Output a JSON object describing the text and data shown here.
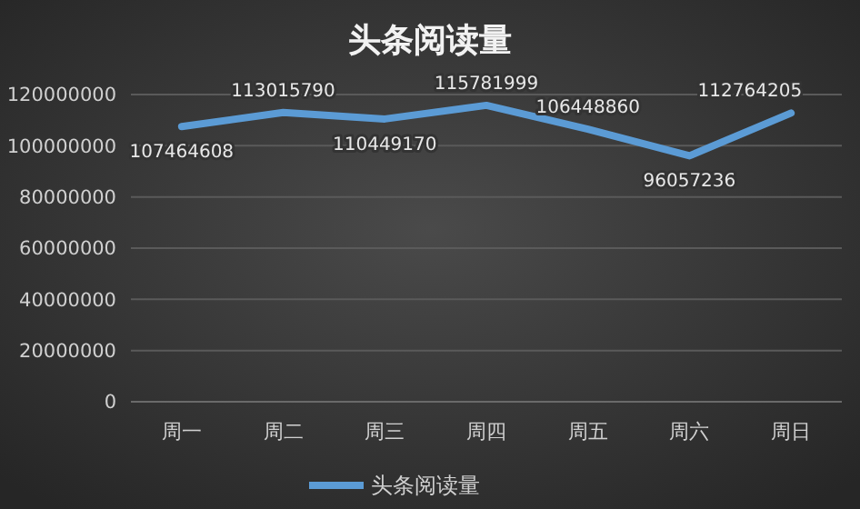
{
  "chart_data": {
    "type": "line",
    "title": "头条阅读量",
    "categories": [
      "周一",
      "周二",
      "周三",
      "周四",
      "周五",
      "周六",
      "周日"
    ],
    "series": [
      {
        "name": "头条阅读量",
        "color": "#5b9bd5",
        "values": [
          107464608,
          113015790,
          110449170,
          115781999,
          106448860,
          96057236,
          112764205
        ]
      }
    ],
    "ylim": [
      0,
      120000000
    ],
    "yticks": [
      0,
      20000000,
      40000000,
      60000000,
      80000000,
      100000000,
      120000000
    ],
    "grid": "y",
    "legend": "bottom",
    "data_labels": true,
    "marker": "none",
    "line_style": "solid"
  }
}
